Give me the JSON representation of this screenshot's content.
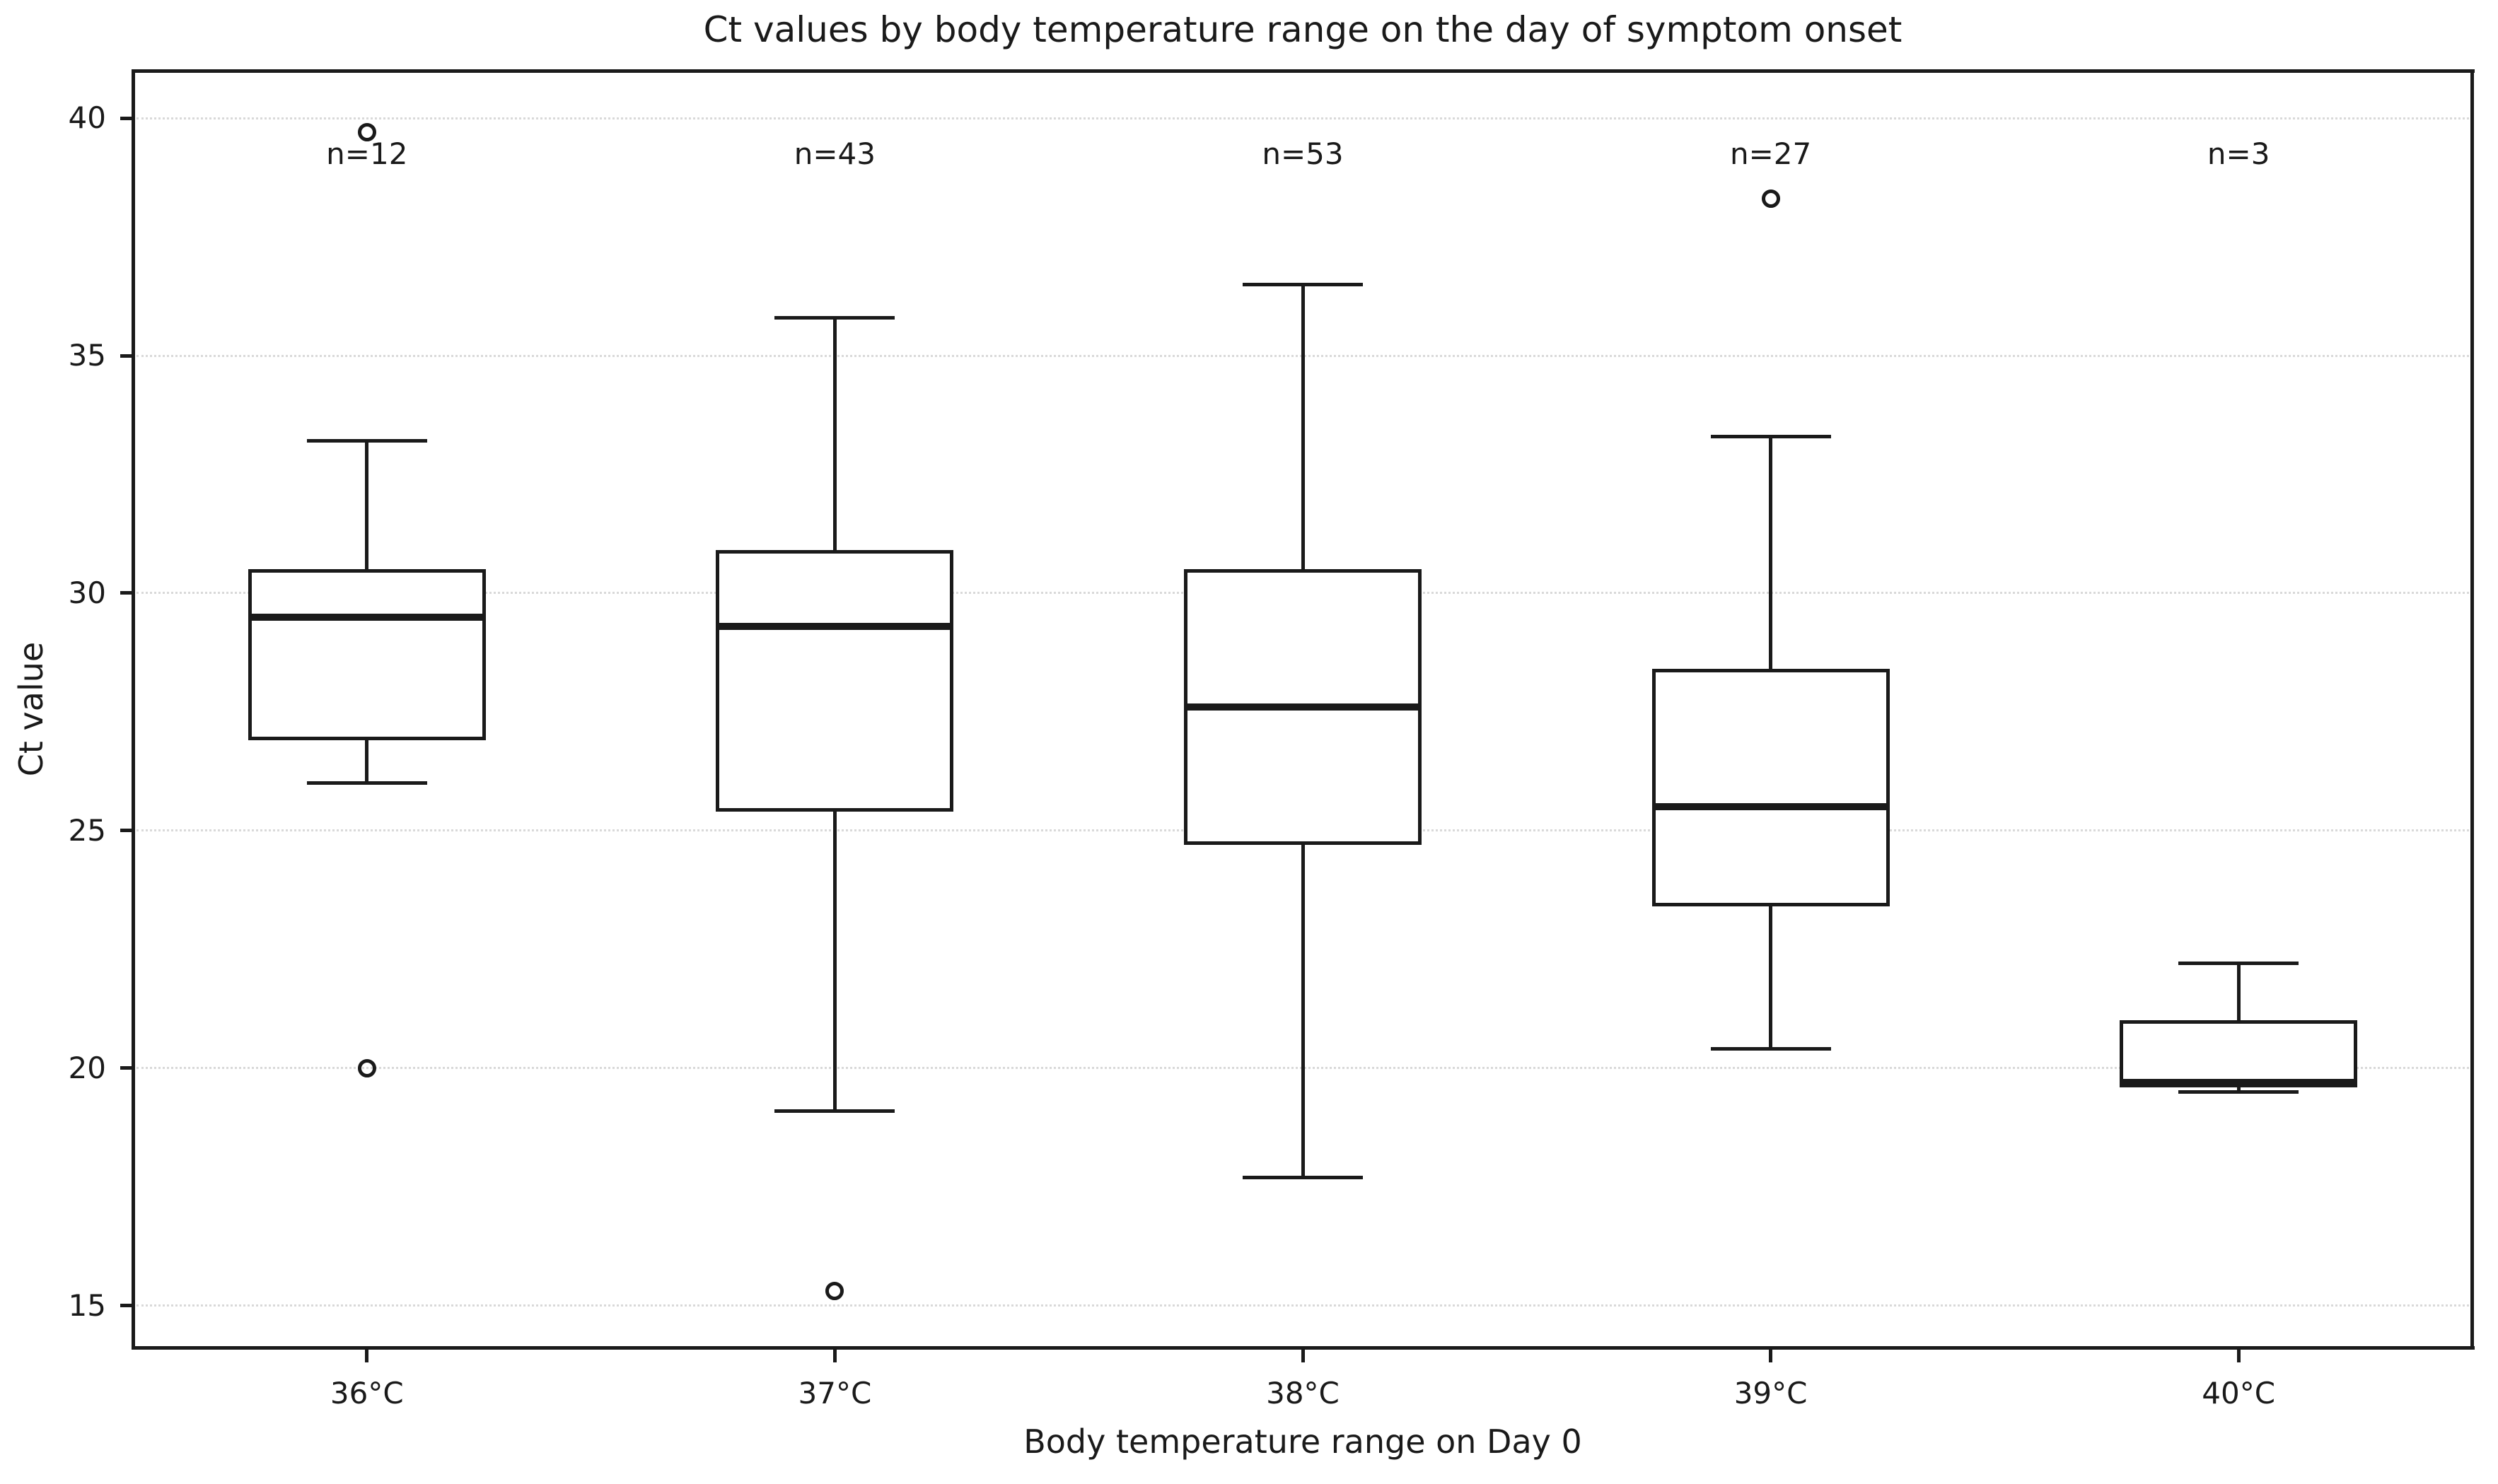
{
  "chart_data": {
    "type": "boxplot",
    "title": "Ct values by body temperature range on the day of symptom onset",
    "xlabel": "Body temperature range on Day 0",
    "ylabel": "Ct value",
    "categories": [
      "36°C",
      "37°C",
      "38°C",
      "39°C",
      "40°C"
    ],
    "n_labels": [
      "n=12",
      "n=43",
      "n=53",
      "n=27",
      "n=3"
    ],
    "series": [
      {
        "category": "36°C",
        "n_label": "n=12",
        "whisker_low": 26.0,
        "q1": 26.9,
        "median": 29.5,
        "q3": 30.5,
        "whisker_high": 33.2,
        "outliers": [
          39.7,
          20.0
        ]
      },
      {
        "category": "37°C",
        "n_label": "n=43",
        "whisker_low": 19.1,
        "q1": 25.4,
        "median": 29.3,
        "q3": 30.9,
        "whisker_high": 35.8,
        "outliers": [
          15.3
        ]
      },
      {
        "category": "38°C",
        "n_label": "n=53",
        "whisker_low": 17.7,
        "q1": 24.7,
        "median": 27.6,
        "q3": 30.5,
        "whisker_high": 36.5,
        "outliers": []
      },
      {
        "category": "39°C",
        "n_label": "n=27",
        "whisker_low": 20.4,
        "q1": 23.4,
        "median": 25.5,
        "q3": 28.4,
        "whisker_high": 33.3,
        "outliers": [
          38.3
        ]
      },
      {
        "category": "40°C",
        "n_label": "n=3",
        "whisker_low": 19.5,
        "q1": 19.6,
        "median": 19.7,
        "q3": 21.0,
        "whisker_high": 22.2,
        "outliers": []
      }
    ],
    "yticks": [
      15,
      20,
      25,
      30,
      35,
      40
    ],
    "ylim": [
      14.1,
      41.0
    ],
    "grid": true,
    "legend": null
  },
  "colors": {
    "background": "#ffffff",
    "line": "#1a1a1a",
    "grid": "#d9d9d9",
    "text": "#1a1a1a"
  }
}
